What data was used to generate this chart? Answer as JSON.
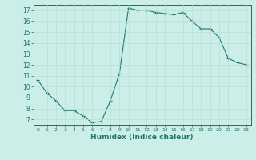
{
  "x": [
    0,
    1,
    2,
    3,
    4,
    5,
    6,
    7,
    8,
    9,
    10,
    11,
    12,
    13,
    14,
    15,
    16,
    17,
    18,
    19,
    20,
    21,
    22,
    23
  ],
  "y": [
    10.6,
    9.4,
    8.7,
    7.8,
    7.8,
    7.3,
    6.7,
    6.8,
    8.7,
    11.2,
    17.2,
    17.0,
    17.0,
    16.8,
    16.7,
    16.6,
    16.8,
    16.0,
    15.3,
    15.3,
    14.5,
    12.6,
    12.2,
    12.0
  ],
  "xlabel": "Humidex (Indice chaleur)",
  "ylim": [
    6.5,
    17.5
  ],
  "xlim": [
    -0.5,
    23.5
  ],
  "yticks": [
    7,
    8,
    9,
    10,
    11,
    12,
    13,
    14,
    15,
    16,
    17
  ],
  "xticks": [
    0,
    1,
    2,
    3,
    4,
    5,
    6,
    7,
    8,
    9,
    10,
    11,
    12,
    13,
    14,
    15,
    16,
    17,
    18,
    19,
    20,
    21,
    22,
    23
  ],
  "line_color": "#1a7a6a",
  "marker": "+",
  "bg_color": "#cceee8",
  "grid_color": "#b8ddd8",
  "spine_color": "#336655"
}
